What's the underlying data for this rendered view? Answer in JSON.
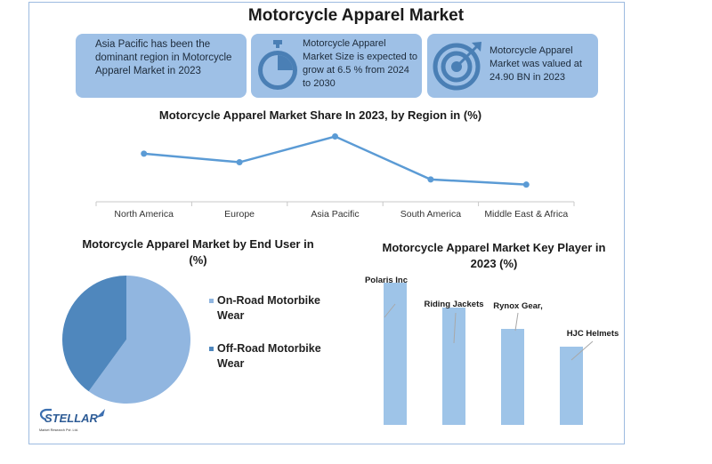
{
  "title": "Motorcycle Apparel Market",
  "cards": [
    {
      "text": "Asia Pacific has been the dominant region in Motorcycle Apparel Market in 2023",
      "icon": "text-only"
    },
    {
      "text": "Motorcycle Apparel Market Size is expected to grow at 6.5 % from 2024 to 2030",
      "icon": "stopwatch-icon"
    },
    {
      "text": "Motorcycle Apparel Market was valued at 24.90 BN in 2023",
      "icon": "target-icon"
    }
  ],
  "colors": {
    "card": "#9ec0e6",
    "line": "#5b9bd5",
    "pie_light": "#91b6e0",
    "pie_dark": "#4f87bd",
    "bar": "#9ec4e8",
    "frame": "#9dbbe0"
  },
  "chart_data": [
    {
      "type": "line",
      "title": "Motorcycle Apparel Market Share In 2023, by Region in (%)",
      "categories": [
        "North America",
        "Europe",
        "Asia Pacific",
        "South America",
        "Middle East & Africa"
      ],
      "values": [
        28,
        23,
        38,
        13,
        10
      ],
      "ylim": [
        0,
        45
      ],
      "grid": false
    },
    {
      "type": "pie",
      "title": "Motorcycle Apparel Market by End User in (%)",
      "labels": [
        "On-Road Motorbike Wear",
        "Off-Road Motorbike Wear"
      ],
      "values": [
        60,
        40
      ],
      "legend": "right"
    },
    {
      "type": "bar",
      "title": "Motorcycle Apparel Market Key Player in 2023 (%)",
      "categories": [
        "Polaris Inc",
        "Riding Jackets",
        "Rynox Gear,",
        "HJC Helmets"
      ],
      "values": [
        40,
        33,
        27,
        22
      ],
      "ylim": [
        0,
        50
      ]
    }
  ],
  "logo": {
    "text": "STELLAR",
    "tagline": "Market Research Pvt. Ltd."
  }
}
